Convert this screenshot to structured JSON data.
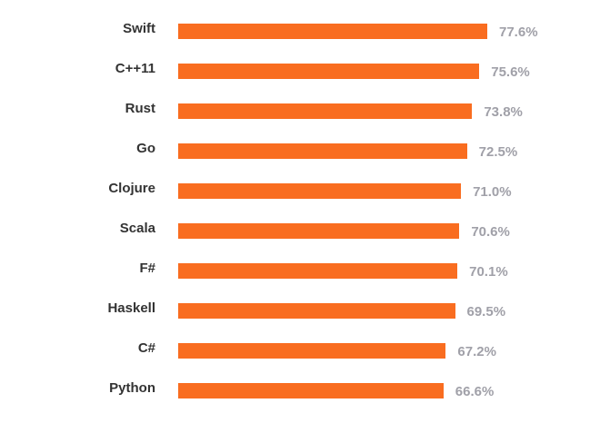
{
  "chart_data": {
    "type": "bar",
    "orientation": "horizontal",
    "title": "",
    "xlabel": "",
    "ylabel": "",
    "categories": [
      "Swift",
      "C++11",
      "Rust",
      "Go",
      "Clojure",
      "Scala",
      "F#",
      "Haskell",
      "C#",
      "Python"
    ],
    "values": [
      77.6,
      75.6,
      73.8,
      72.5,
      71.0,
      70.6,
      70.1,
      69.5,
      67.2,
      66.6
    ],
    "value_labels": [
      "77.6%",
      "75.6%",
      "73.8%",
      "72.5%",
      "71.0%",
      "70.6%",
      "70.1%",
      "69.5%",
      "67.2%",
      "66.6%"
    ],
    "unit": "%",
    "grid": false,
    "legend": null,
    "bar_color": "#f96d20",
    "label_color": "#333333",
    "value_label_color": "#a0a0a8"
  }
}
